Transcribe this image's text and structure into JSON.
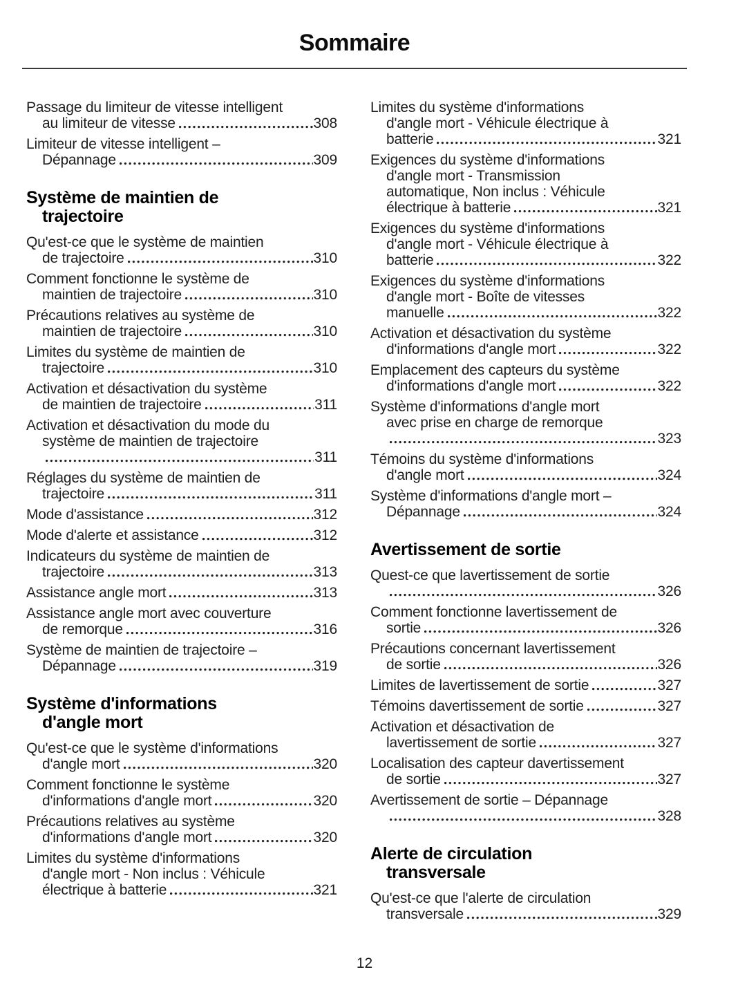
{
  "page": {
    "title": "Sommaire",
    "footer_page_number": "12"
  },
  "colors": {
    "text": "#1e1e1e",
    "heading": "#000000",
    "rule": "#383838",
    "background": "#ffffff"
  },
  "toc": {
    "left_column": [
      {
        "type": "entry",
        "lines": [
          "Passage du limiteur de vitesse intelligent",
          "au limiteur de vitesse"
        ],
        "page": "308"
      },
      {
        "type": "entry",
        "lines": [
          "Limiteur de vitesse intelligent –",
          "Dépannage"
        ],
        "page": "309"
      },
      {
        "type": "heading",
        "lines": [
          "Système de maintien de",
          "trajectoire"
        ]
      },
      {
        "type": "entry",
        "lines": [
          "Qu'est-ce que le système de maintien",
          "de trajectoire"
        ],
        "page": "310"
      },
      {
        "type": "entry",
        "lines": [
          "Comment fonctionne le système de",
          "maintien de trajectoire"
        ],
        "page": "310"
      },
      {
        "type": "entry",
        "lines": [
          "Précautions relatives au système de",
          "maintien de trajectoire"
        ],
        "page": "310"
      },
      {
        "type": "entry",
        "lines": [
          "Limites du système de maintien de",
          "trajectoire"
        ],
        "page": "310"
      },
      {
        "type": "entry",
        "lines": [
          "Activation et désactivation du système",
          "de maintien de trajectoire"
        ],
        "page": "311"
      },
      {
        "type": "entry",
        "lines": [
          "Activation et désactivation du mode du",
          "système de maintien de trajectoire",
          ""
        ],
        "page": "311"
      },
      {
        "type": "entry",
        "lines": [
          "Réglages du système de maintien de",
          "trajectoire"
        ],
        "page": "311"
      },
      {
        "type": "entry",
        "lines": [
          "Mode d'assistance"
        ],
        "page": "312"
      },
      {
        "type": "entry",
        "lines": [
          "Mode d'alerte et assistance"
        ],
        "page": "312"
      },
      {
        "type": "entry",
        "lines": [
          "Indicateurs du système de maintien de",
          "trajectoire"
        ],
        "page": "313"
      },
      {
        "type": "entry",
        "lines": [
          "Assistance angle mort"
        ],
        "page": "313"
      },
      {
        "type": "entry",
        "lines": [
          "Assistance angle mort avec couverture",
          "de remorque"
        ],
        "page": "316"
      },
      {
        "type": "entry",
        "lines": [
          "Système de maintien de trajectoire –",
          "Dépannage"
        ],
        "page": "319"
      },
      {
        "type": "heading",
        "lines": [
          "Système d'informations",
          "d'angle mort"
        ]
      },
      {
        "type": "entry",
        "lines": [
          "Qu'est-ce que le système d'informations",
          "d'angle mort"
        ],
        "page": "320"
      },
      {
        "type": "entry",
        "lines": [
          "Comment fonctionne le système",
          "d'informations d'angle mort"
        ],
        "page": "320"
      },
      {
        "type": "entry",
        "lines": [
          "Précautions relatives au système",
          "d'informations d'angle mort"
        ],
        "page": "320"
      },
      {
        "type": "entry",
        "lines": [
          "Limites du système d'informations",
          "d'angle mort - Non inclus : Véhicule",
          "électrique à batterie"
        ],
        "page": "321"
      }
    ],
    "right_column": [
      {
        "type": "entry",
        "lines": [
          "Limites du système d'informations",
          "d'angle mort - Véhicule électrique à",
          "batterie"
        ],
        "page": "321"
      },
      {
        "type": "entry",
        "lines": [
          "Exigences du système d'informations",
          "d'angle mort - Transmission",
          "automatique, Non inclus : Véhicule",
          "électrique à batterie"
        ],
        "page": "321"
      },
      {
        "type": "entry",
        "lines": [
          "Exigences du système d'informations",
          "d'angle mort - Véhicule électrique à",
          "batterie"
        ],
        "page": "322"
      },
      {
        "type": "entry",
        "lines": [
          "Exigences du système d'informations",
          "d'angle mort - Boîte de vitesses",
          "manuelle"
        ],
        "page": "322"
      },
      {
        "type": "entry",
        "lines": [
          "Activation et désactivation du système",
          "d'informations d'angle mort"
        ],
        "page": "322"
      },
      {
        "type": "entry",
        "lines": [
          "Emplacement des capteurs du système",
          "d'informations d'angle mort"
        ],
        "page": "322"
      },
      {
        "type": "entry",
        "lines": [
          "Système d'informations d'angle mort",
          "avec prise en charge de remorque",
          ""
        ],
        "page": "323"
      },
      {
        "type": "entry",
        "lines": [
          "Témoins du système d'informations",
          "d'angle mort"
        ],
        "page": "324"
      },
      {
        "type": "entry",
        "lines": [
          "Système d'informations d'angle mort –",
          "Dépannage"
        ],
        "page": "324"
      },
      {
        "type": "heading",
        "lines": [
          "Avertissement de sortie"
        ]
      },
      {
        "type": "entry",
        "lines": [
          "Quest-ce que lavertissement de sortie",
          ""
        ],
        "page": "326"
      },
      {
        "type": "entry",
        "lines": [
          "Comment fonctionne lavertissement de",
          "sortie"
        ],
        "page": "326"
      },
      {
        "type": "entry",
        "lines": [
          "Précautions concernant lavertissement",
          "de sortie"
        ],
        "page": "326"
      },
      {
        "type": "entry",
        "lines": [
          "Limites de lavertissement de sortie"
        ],
        "page": "327"
      },
      {
        "type": "entry",
        "lines": [
          "Témoins davertissement de sortie"
        ],
        "page": "327"
      },
      {
        "type": "entry",
        "lines": [
          "Activation et désactivation de",
          "lavertissement de sortie"
        ],
        "page": "327"
      },
      {
        "type": "entry",
        "lines": [
          "Localisation des capteur davertissement",
          "de sortie"
        ],
        "page": "327"
      },
      {
        "type": "entry",
        "lines": [
          "Avertissement de sortie – Dépannage",
          ""
        ],
        "page": "328"
      },
      {
        "type": "heading",
        "lines": [
          "Alerte de circulation",
          "transversale"
        ]
      },
      {
        "type": "entry",
        "lines": [
          "Qu'est-ce que l'alerte de circulation",
          "transversale"
        ],
        "page": "329"
      }
    ]
  }
}
